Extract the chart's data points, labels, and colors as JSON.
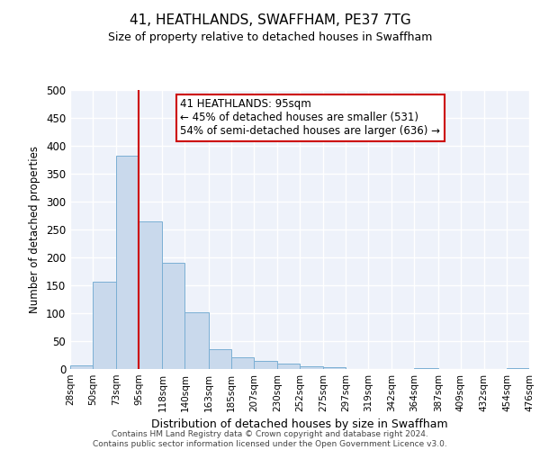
{
  "title": "41, HEATHLANDS, SWAFFHAM, PE37 7TG",
  "subtitle": "Size of property relative to detached houses in Swaffham",
  "xlabel": "Distribution of detached houses by size in Swaffham",
  "ylabel": "Number of detached properties",
  "bar_color": "#c9d9ec",
  "bar_edge_color": "#7aafd4",
  "background_color": "#eef2fa",
  "grid_color": "#ffffff",
  "vline_x": 95,
  "vline_color": "#cc0000",
  "annotation_title": "41 HEATHLANDS: 95sqm",
  "annotation_line1": "← 45% of detached houses are smaller (531)",
  "annotation_line2": "54% of semi-detached houses are larger (636) →",
  "annotation_box_color": "#cc0000",
  "bin_edges": [
    28,
    50,
    73,
    95,
    118,
    140,
    163,
    185,
    207,
    230,
    252,
    275,
    297,
    319,
    342,
    364,
    387,
    409,
    432,
    454,
    476
  ],
  "bar_heights": [
    7,
    157,
    383,
    265,
    190,
    102,
    36,
    21,
    14,
    10,
    5,
    3,
    0,
    0,
    0,
    2,
    0,
    0,
    0,
    2
  ],
  "ylim": [
    0,
    500
  ],
  "yticks": [
    0,
    50,
    100,
    150,
    200,
    250,
    300,
    350,
    400,
    450,
    500
  ],
  "footer_line1": "Contains HM Land Registry data © Crown copyright and database right 2024.",
  "footer_line2": "Contains public sector information licensed under the Open Government Licence v3.0."
}
